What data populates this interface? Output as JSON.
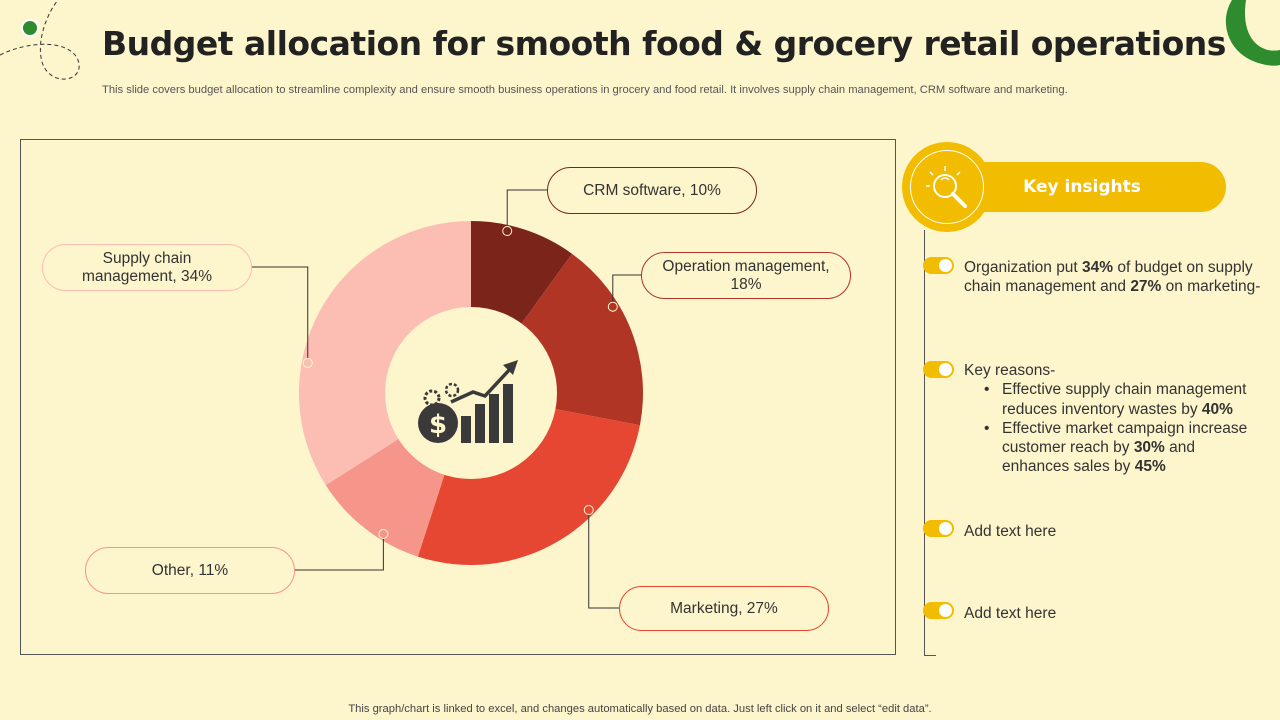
{
  "title": "Budget allocation for smooth food & grocery retail operations",
  "subtitle": "This slide covers budget allocation to streamline complexity and ensure smooth business operations in grocery and food retail. It involves supply chain management, CRM software and marketing.",
  "footer": "This graph/chart is linked to excel, and changes automatically based on data. Just left click on it and select “edit data”.",
  "chart_data": {
    "type": "pie",
    "donut": true,
    "categories": [
      "CRM software",
      "Operation management",
      "Marketing",
      "Other",
      "Supply chain management"
    ],
    "values": [
      10,
      18,
      27,
      11,
      34
    ],
    "unit": "%",
    "colors": [
      "#7a241a",
      "#b03525",
      "#e64732",
      "#f6958a",
      "#fcbdb3"
    ],
    "labels": [
      "CRM software, 10%",
      "Operation management, 18%",
      "Marketing, 27%",
      "Other, 11%",
      "Supply chain management, 34%"
    ],
    "center_icon": "money-growth-chart-icon"
  },
  "insights": {
    "header": "Key insights",
    "icon": "lightbulb-magnifier-icon",
    "item1": {
      "prefix": "Organization put ",
      "bold1": "34%",
      "middle": " of budget on supply chain management and ",
      "bold2": "27%",
      "suffix": " on marketing-"
    },
    "item2": {
      "heading": "Key reasons-",
      "bullet1_text": "Effective supply chain management reduces inventory wastes by ",
      "bullet1_bold": "40%",
      "bullet2_text_a": "Effective market campaign increase customer reach by ",
      "bullet2_bold_a": "30%",
      "bullet2_text_b": " and enhances sales by ",
      "bullet2_bold_b": "45%"
    },
    "item3": "Add text here",
    "item4": "Add text here",
    "accent_color": "#f2bd00"
  }
}
